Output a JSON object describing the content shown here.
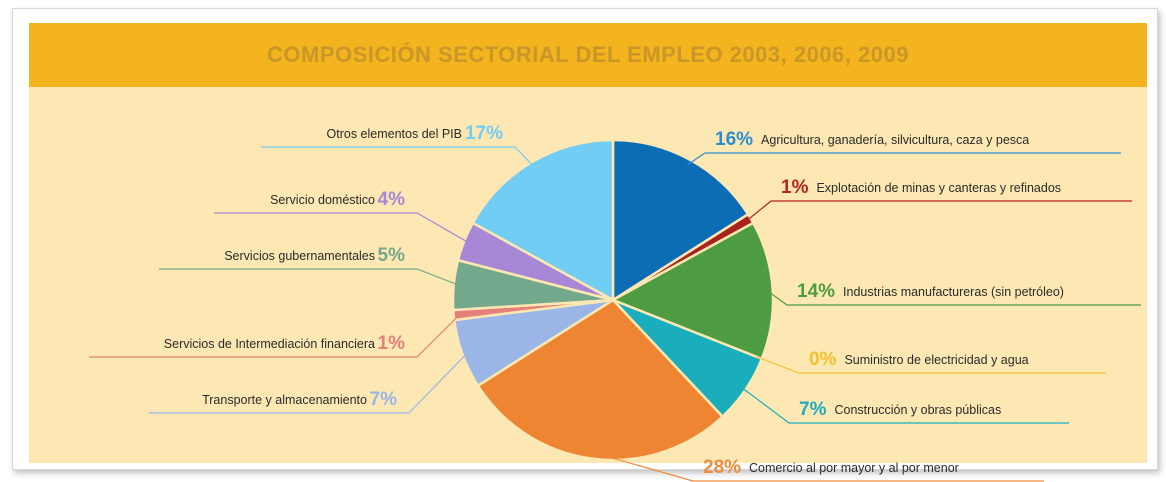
{
  "colors": {
    "title_bg": "#f3b41e",
    "title_text": "#c9962a",
    "panel_bg": "#fde8b4"
  },
  "chart_data": {
    "type": "pie",
    "title": "COMPOSICIÓN SECTORIAL DEL EMPLEO 2003, 2006, 2009",
    "slices": [
      {
        "label": "Agricultura, ganadería, silvicultura, caza y pesca",
        "value": 16,
        "pct_label": "16%",
        "color": "#0c6cb4",
        "label_color": "#2a8fd0"
      },
      {
        "label": "Explotación de minas y canteras y refinados",
        "value": 1,
        "pct_label": "1%",
        "color": "#a8231c",
        "label_color": "#b8231c"
      },
      {
        "label": "Industrias manufactureras (sin petróleo)",
        "value": 14,
        "pct_label": "14%",
        "color": "#4d9c41",
        "label_color": "#4d9c41"
      },
      {
        "label": "Suministro de electricidad y agua",
        "value": 0,
        "pct_label": "0%",
        "color": "#f2c230",
        "label_color": "#f2c230"
      },
      {
        "label": "Construcción y obras públicas",
        "value": 7,
        "pct_label": "7%",
        "color": "#1aaebd",
        "label_color": "#1aaebd"
      },
      {
        "label": "Comercio al por mayor y al por menor",
        "value": 28,
        "pct_label": "28%",
        "color": "#ee8532",
        "label_color": "#f08a3c"
      },
      {
        "label": "Transporte y almacenamiento",
        "value": 7,
        "pct_label": "7%",
        "color": "#9ab5e6",
        "label_color": "#9ab5e6"
      },
      {
        "label": "Servicios de Intermediación financiera",
        "value": 1,
        "pct_label": "1%",
        "color": "#e47f79",
        "label_color": "#e47f79"
      },
      {
        "label": "Servicios gubernamentales",
        "value": 5,
        "pct_label": "5%",
        "color": "#74a88c",
        "label_color": "#74a88c"
      },
      {
        "label": "Servicio doméstico",
        "value": 4,
        "pct_label": "4%",
        "color": "#a888d6",
        "label_color": "#a888d6"
      },
      {
        "label": "Otros elementos del PIB",
        "value": 17,
        "pct_label": "17%",
        "color": "#71cdf4",
        "label_color": "#71cdf4"
      }
    ]
  }
}
